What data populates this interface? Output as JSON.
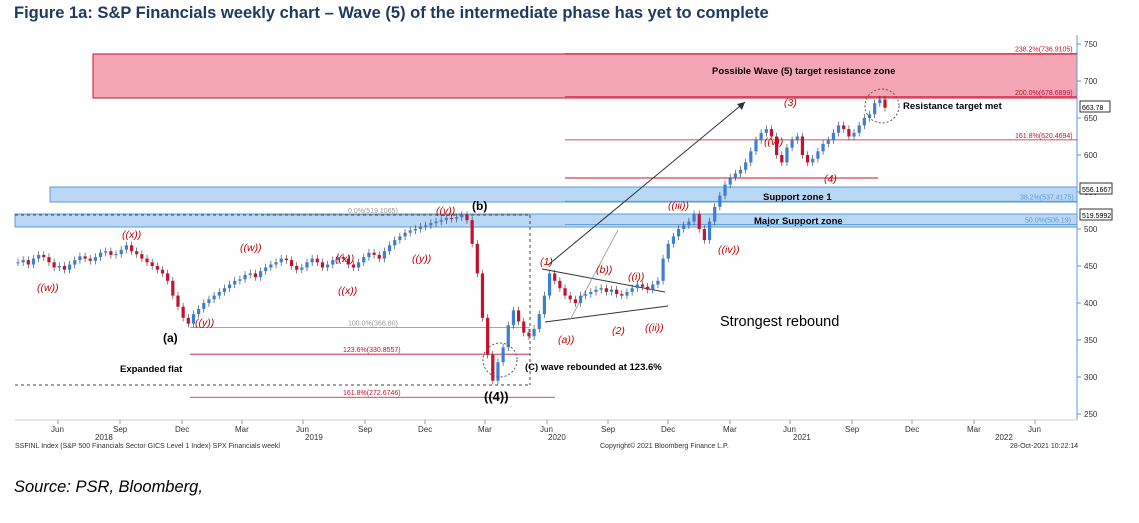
{
  "figure_title": "Figure 1a: S&P Financials weekly chart – Wave (5) of the intermediate phase has yet to complete",
  "source": "Source: PSR, Bloomberg,",
  "footer": {
    "index": "SSFINL Index (S&P 500 Financials Sector GICS Level 1 Index) SPX Financials weekl",
    "copyright": "Copyright© 2021 Bloomberg Finance L.P.",
    "timestamp": "28-Oct-2021 10:22:14"
  },
  "colors": {
    "up": "#3a7fd5",
    "down": "#c8102e",
    "zone_red": "#f4a6b4",
    "zone_blue": "#b9d8f5",
    "wave": "#c00000"
  },
  "chart_data": {
    "type": "candlestick",
    "y_axis": {
      "side": "right",
      "min": 250,
      "max": 750,
      "ticks": [
        250,
        300,
        350,
        400,
        450,
        500,
        550,
        600,
        650,
        700,
        750
      ]
    },
    "x_axis": {
      "ticks": [
        "Jun",
        "Sep",
        "Dec",
        "Mar",
        "Jun",
        "Sep",
        "Dec",
        "Mar",
        "Jun",
        "Sep",
        "Dec",
        "Mar",
        "Jun",
        "Sep",
        "Dec",
        "Mar",
        "Jun"
      ],
      "years": [
        "2018",
        "2019",
        "2020",
        "2021",
        "2022"
      ]
    },
    "last_price": "663.78",
    "price_tags": [
      "556.1667",
      "519.5992"
    ],
    "fib_levels": [
      {
        "label": "238.2%(736.9105)",
        "value": 736.91
      },
      {
        "label": "200.0%(678.6899)",
        "value": 678.69
      },
      {
        "label": "161.8%(620.4694)",
        "value": 620.47
      },
      {
        "label": "38.2%(537.4175)",
        "value": 537.42
      },
      {
        "label": "50.0%(506.19)",
        "value": 506.19
      },
      {
        "label": "0.0%(519.1065)",
        "value": 519.11
      },
      {
        "label": "100.0%(366.80)",
        "value": 366.8
      },
      {
        "label": "123.6%(330.8557)",
        "value": 330.86
      },
      {
        "label": "161.8%(272.6746)",
        "value": 272.67
      }
    ],
    "zones": [
      {
        "label": "Possible Wave (5) target resistance zone",
        "from": 678.69,
        "to": 736.91
      },
      {
        "label": "Support zone 1",
        "from": 537.42,
        "to": 556.17
      },
      {
        "label": "Major Support zone",
        "from": 506.19,
        "to": 519.6
      }
    ],
    "wave_labels": [
      "((w))",
      "((x))",
      "((w))",
      "((x))",
      "((y))",
      "((y))",
      "((y))",
      "((x))",
      "((4))",
      "(a)",
      "(b)",
      "(1)",
      "(2)",
      "(3)",
      "(4)",
      "(a))",
      "(b))",
      "((i))",
      "((ii))",
      "((iii))",
      "((iv))",
      "((v))"
    ],
    "annotations": [
      "Expanded flat",
      "(C) wave rebounded at 123.6%",
      "Strongest rebound",
      "Resistance target met"
    ],
    "series_close": [
      455,
      458,
      452,
      460,
      465,
      462,
      455,
      448,
      450,
      445,
      452,
      458,
      463,
      460,
      457,
      462,
      468,
      470,
      465,
      466,
      472,
      478,
      470,
      466,
      460,
      455,
      450,
      445,
      440,
      430,
      410,
      395,
      380,
      372,
      385,
      392,
      400,
      405,
      410,
      415,
      420,
      425,
      430,
      432,
      438,
      440,
      435,
      443,
      448,
      452,
      455,
      460,
      458,
      450,
      445,
      448,
      455,
      460,
      455,
      448,
      452,
      458,
      462,
      460,
      452,
      448,
      455,
      462,
      468,
      465,
      460,
      470,
      478,
      485,
      490,
      495,
      498,
      500,
      503,
      505,
      508,
      510,
      512,
      515,
      514,
      516,
      519,
      512,
      480,
      440,
      380,
      330,
      295,
      320,
      340,
      370,
      390,
      375,
      360,
      355,
      365,
      385,
      410,
      440,
      430,
      420,
      410,
      405,
      400,
      410,
      412,
      415,
      418,
      420,
      415,
      418,
      412,
      410,
      415,
      420,
      425,
      422,
      418,
      425,
      430,
      460,
      480,
      490,
      500,
      505,
      510,
      520,
      500,
      485,
      510,
      530,
      545,
      560,
      570,
      575,
      580,
      590,
      605,
      620,
      630,
      635,
      625,
      600,
      590,
      610,
      620,
      625,
      600,
      590,
      595,
      605,
      615,
      620,
      630,
      640,
      635,
      625,
      630,
      640,
      650,
      655,
      670,
      675,
      663.78
    ]
  }
}
